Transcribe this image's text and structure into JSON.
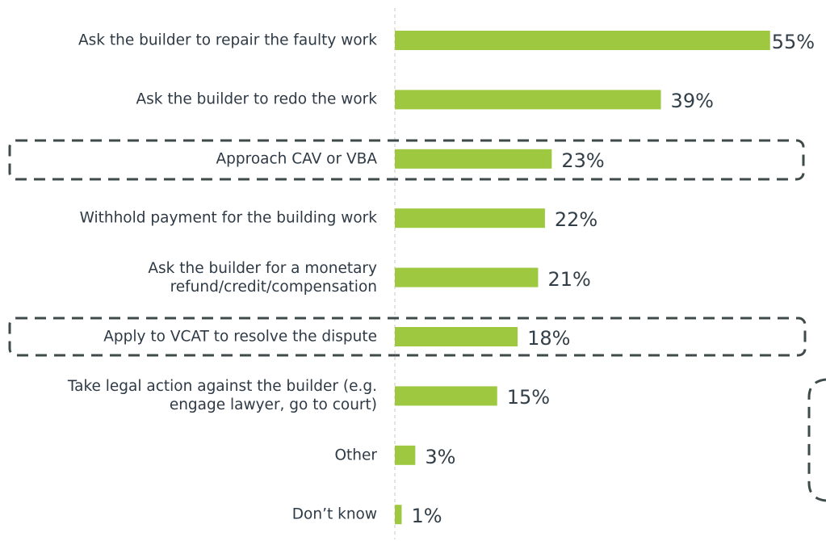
{
  "chart_data": {
    "type": "bar",
    "orientation": "horizontal",
    "categories": [
      "Ask the builder to repair the faulty work",
      "Ask the builder to redo the work",
      "Approach CAV or VBA",
      "Withhold payment for the building work",
      "Ask the builder for a monetary refund/credit/compensation",
      "Apply to VCAT to resolve the dispute",
      "Take legal action against the builder (e.g. engage lawyer, go to court)",
      "Other",
      "Don’t know"
    ],
    "values": [
      55,
      39,
      23,
      22,
      21,
      18,
      15,
      3,
      1
    ],
    "value_labels": [
      "55%",
      "39%",
      "23%",
      "22%",
      "21%",
      "18%",
      "15%",
      "3%",
      "1%"
    ],
    "color": "#9dc83f"
  }
}
